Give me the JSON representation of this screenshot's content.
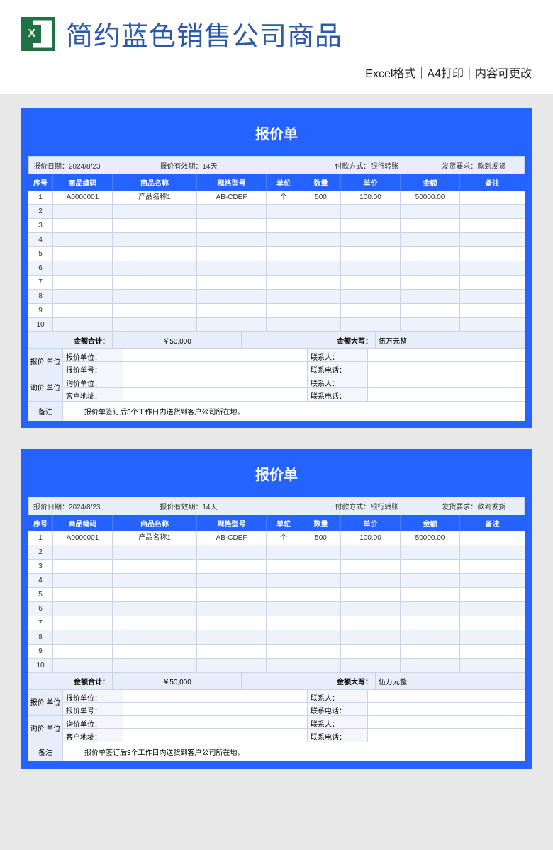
{
  "header": {
    "title": "简约蓝色销售公司商品",
    "subtitle": "Excel格式｜A4打印｜内容可更改",
    "title_color": "#2b5aa8",
    "icon_bg": "#1f7246"
  },
  "card": {
    "frame_color": "#2563ff",
    "alt_row_bg": "#eef2fa",
    "meta_bg": "#e8eef9",
    "title": "报价单",
    "meta": {
      "date_label": "报价日期：",
      "date_value": "2024/8/23",
      "valid_label": "报价有效期：",
      "valid_value": "14天",
      "pay_label": "付款方式：",
      "pay_value": "银行转账",
      "ship_label": "发货要求：",
      "ship_value": "款到发货"
    },
    "columns": {
      "idx": "序号",
      "code": "商品编码",
      "name": "商品名称",
      "spec": "规格型号",
      "unit": "单位",
      "qty": "数量",
      "price": "单价",
      "amt": "金额",
      "note": "备注"
    },
    "rows": [
      {
        "idx": "1",
        "code": "A0000001",
        "name": "产品名称1",
        "spec": "AB-CDEF",
        "unit": "个",
        "qty": "500",
        "price": "100.00",
        "amt": "50000.00",
        "note": ""
      },
      {
        "idx": "2"
      },
      {
        "idx": "3"
      },
      {
        "idx": "4"
      },
      {
        "idx": "5"
      },
      {
        "idx": "6"
      },
      {
        "idx": "7"
      },
      {
        "idx": "8"
      },
      {
        "idx": "9"
      },
      {
        "idx": "10"
      }
    ],
    "total": {
      "label": "金额合计：",
      "value": "￥50,000",
      "cap_label": "金额大写：",
      "cap_value": "伍万元整"
    },
    "footer": {
      "quote_unit_label": "报价\n单位",
      "inquiry_unit_label": "询价\n单位",
      "quote_unit": "报价单位：",
      "quote_no": "报价单号：",
      "inquiry_unit": "询价单位：",
      "cust_addr": "客户地址：",
      "contact": "联系人：",
      "phone": "联系电话：",
      "remark_label": "备注",
      "remark_text": "报价单签订后3个工作日内送货到客户公司所在地。"
    }
  }
}
